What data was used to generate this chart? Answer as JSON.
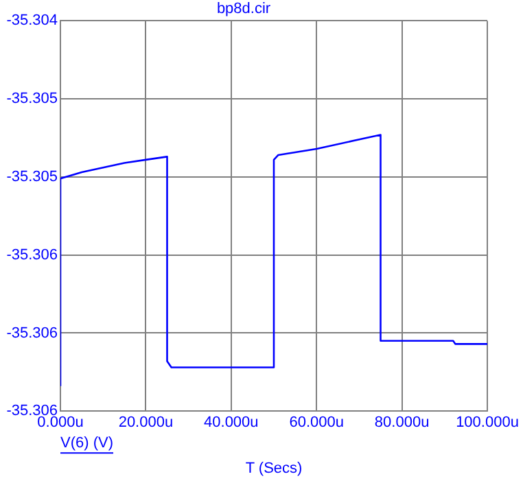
{
  "chart_data": {
    "type": "line",
    "title": "bp8d.cir",
    "xlabel": "T (Secs)",
    "x": [
      0,
      0,
      5,
      10,
      15,
      20,
      25,
      25,
      26,
      50,
      50,
      51,
      60,
      70,
      75,
      75,
      92,
      92.5,
      100
    ],
    "series": [
      {
        "name": "V(6) (V)",
        "color": "#0000ff",
        "values": [
          -35.30634,
          -35.30501,
          -35.30497,
          -35.30494,
          -35.30491,
          -35.30489,
          -35.30487,
          -35.30618,
          -35.30622,
          -35.30622,
          -35.30489,
          -35.30486,
          -35.30482,
          -35.30476,
          -35.30473,
          -35.30605,
          -35.30605,
          -35.30607,
          -35.30607
        ]
      }
    ],
    "xlim": [
      0,
      100
    ],
    "xticks": [
      {
        "value": 0,
        "label": "0.000u"
      },
      {
        "value": 20,
        "label": "20.000u"
      },
      {
        "value": 40,
        "label": "40.000u"
      },
      {
        "value": 60,
        "label": "60.000u"
      },
      {
        "value": 80,
        "label": "80.000u"
      },
      {
        "value": 100,
        "label": "100.000u"
      }
    ],
    "ylim": [
      -35.3065,
      -35.304
    ],
    "yticks": [
      {
        "value": -35.3065,
        "label": "-35.306"
      },
      {
        "value": -35.306,
        "label": "-35.306"
      },
      {
        "value": -35.3055,
        "label": "-35.306"
      },
      {
        "value": -35.305,
        "label": "-35.305"
      },
      {
        "value": -35.3045,
        "label": "-35.305"
      },
      {
        "value": -35.304,
        "label": "-35.304"
      }
    ],
    "grid": true,
    "legend": "bottom left",
    "marker": "none",
    "line_style": "solid"
  }
}
